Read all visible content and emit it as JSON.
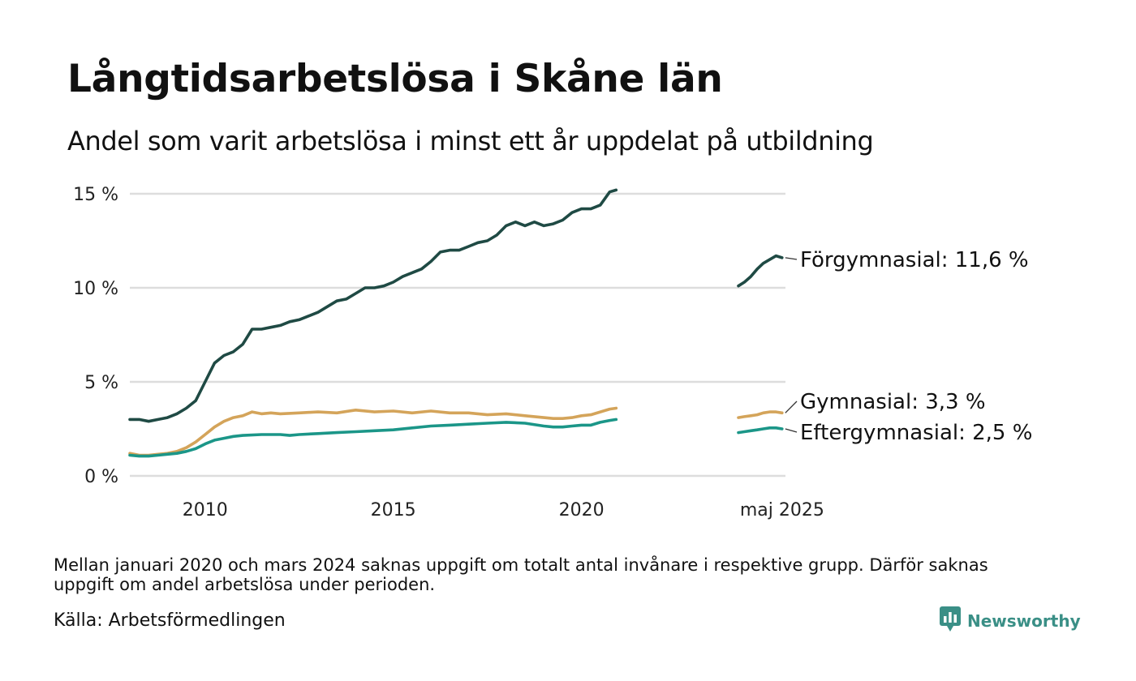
{
  "title": "Långtidsarbetslösa i Skåne län",
  "subtitle": "Andel som varit arbetslösa i minst ett år uppdelat på utbildning",
  "note": "Mellan januari 2020 och mars 2024 saknas uppgift om totalt antal invånare i respektive grupp. Därför saknas uppgift om andel arbetslösa under perioden.",
  "source": "Källa: Arbetsförmedlingen",
  "logo": {
    "name": "Newsworthy",
    "icon": "bar-chart-speech-bubble-icon"
  },
  "colors": {
    "forgymnasial": "#1f4a44",
    "gymnasial": "#d4a45a",
    "eftergymnasial": "#1b9688",
    "grid": "#dddddd",
    "logo": "#3a8f86"
  },
  "chart_data": {
    "type": "line",
    "xlabel": "",
    "ylabel": "",
    "x_range": [
      2008.0,
      2025.42
    ],
    "ylim": [
      0,
      15
    ],
    "y_ticks": [
      0,
      5,
      10,
      15
    ],
    "y_tick_labels": [
      "0 %",
      "5 %",
      "10 %",
      "15 %"
    ],
    "x_ticks": [
      2010,
      2015,
      2020,
      2025.33
    ],
    "x_tick_labels": [
      "2010",
      "2015",
      "2020",
      "maj 2025"
    ],
    "grid": true,
    "legend": "direct labels at line ends (right)",
    "series": [
      {
        "name": "Förgymnasial",
        "end_label": "Förgymnasial: 11,6 %",
        "color": "#1f4a44",
        "segments": [
          [
            [
              2008.0,
              3.0
            ],
            [
              2008.25,
              3.0
            ],
            [
              2008.5,
              2.9
            ],
            [
              2008.75,
              3.0
            ],
            [
              2009.0,
              3.1
            ],
            [
              2009.25,
              3.3
            ],
            [
              2009.5,
              3.6
            ],
            [
              2009.75,
              4.0
            ],
            [
              2010.0,
              5.0
            ],
            [
              2010.25,
              6.0
            ],
            [
              2010.5,
              6.4
            ],
            [
              2010.75,
              6.6
            ],
            [
              2011.0,
              7.0
            ],
            [
              2011.25,
              7.8
            ],
            [
              2011.5,
              7.8
            ],
            [
              2011.75,
              7.9
            ],
            [
              2012.0,
              8.0
            ],
            [
              2012.25,
              8.2
            ],
            [
              2012.5,
              8.3
            ],
            [
              2012.75,
              8.5
            ],
            [
              2013.0,
              8.7
            ],
            [
              2013.25,
              9.0
            ],
            [
              2013.5,
              9.3
            ],
            [
              2013.75,
              9.4
            ],
            [
              2014.0,
              9.7
            ],
            [
              2014.25,
              10.0
            ],
            [
              2014.5,
              10.0
            ],
            [
              2014.75,
              10.1
            ],
            [
              2015.0,
              10.3
            ],
            [
              2015.25,
              10.6
            ],
            [
              2015.5,
              10.8
            ],
            [
              2015.75,
              11.0
            ],
            [
              2016.0,
              11.4
            ],
            [
              2016.25,
              11.9
            ],
            [
              2016.5,
              12.0
            ],
            [
              2016.75,
              12.0
            ],
            [
              2017.0,
              12.2
            ],
            [
              2017.25,
              12.4
            ],
            [
              2017.5,
              12.5
            ],
            [
              2017.75,
              12.8
            ],
            [
              2018.0,
              13.3
            ],
            [
              2018.25,
              13.5
            ],
            [
              2018.5,
              13.3
            ],
            [
              2018.75,
              13.5
            ],
            [
              2019.0,
              13.3
            ],
            [
              2019.25,
              13.4
            ],
            [
              2019.5,
              13.6
            ],
            [
              2019.75,
              14.0
            ],
            [
              2020.0,
              14.2
            ],
            [
              2020.25,
              14.2
            ],
            [
              2020.5,
              14.4
            ],
            [
              2020.75,
              15.1
            ],
            [
              2020.92,
              15.2
            ]
          ],
          [
            [
              2024.17,
              10.1
            ],
            [
              2024.33,
              10.3
            ],
            [
              2024.5,
              10.6
            ],
            [
              2024.67,
              11.0
            ],
            [
              2024.83,
              11.3
            ],
            [
              2025.0,
              11.5
            ],
            [
              2025.17,
              11.7
            ],
            [
              2025.33,
              11.6
            ]
          ]
        ]
      },
      {
        "name": "Gymnasial",
        "end_label": "Gymnasial:  3,3 %",
        "color": "#d4a45a",
        "segments": [
          [
            [
              2008.0,
              1.2
            ],
            [
              2008.25,
              1.1
            ],
            [
              2008.5,
              1.1
            ],
            [
              2008.75,
              1.15
            ],
            [
              2009.0,
              1.2
            ],
            [
              2009.25,
              1.3
            ],
            [
              2009.5,
              1.5
            ],
            [
              2009.75,
              1.8
            ],
            [
              2010.0,
              2.2
            ],
            [
              2010.25,
              2.6
            ],
            [
              2010.5,
              2.9
            ],
            [
              2010.75,
              3.1
            ],
            [
              2011.0,
              3.2
            ],
            [
              2011.25,
              3.4
            ],
            [
              2011.5,
              3.3
            ],
            [
              2011.75,
              3.35
            ],
            [
              2012.0,
              3.3
            ],
            [
              2012.5,
              3.35
            ],
            [
              2013.0,
              3.4
            ],
            [
              2013.5,
              3.35
            ],
            [
              2014.0,
              3.5
            ],
            [
              2014.5,
              3.4
            ],
            [
              2015.0,
              3.45
            ],
            [
              2015.5,
              3.35
            ],
            [
              2016.0,
              3.45
            ],
            [
              2016.5,
              3.35
            ],
            [
              2017.0,
              3.35
            ],
            [
              2017.5,
              3.25
            ],
            [
              2018.0,
              3.3
            ],
            [
              2018.5,
              3.2
            ],
            [
              2019.0,
              3.1
            ],
            [
              2019.25,
              3.05
            ],
            [
              2019.5,
              3.05
            ],
            [
              2019.75,
              3.1
            ],
            [
              2020.0,
              3.2
            ],
            [
              2020.25,
              3.25
            ],
            [
              2020.5,
              3.4
            ],
            [
              2020.75,
              3.55
            ],
            [
              2020.92,
              3.6
            ]
          ],
          [
            [
              2024.17,
              3.1
            ],
            [
              2024.33,
              3.15
            ],
            [
              2024.5,
              3.2
            ],
            [
              2024.67,
              3.25
            ],
            [
              2024.83,
              3.35
            ],
            [
              2025.0,
              3.4
            ],
            [
              2025.17,
              3.4
            ],
            [
              2025.33,
              3.35
            ]
          ]
        ]
      },
      {
        "name": "Eftergymnasial",
        "end_label": "Eftergymnasial:  2,5 %",
        "color": "#1b9688",
        "segments": [
          [
            [
              2008.0,
              1.1
            ],
            [
              2008.25,
              1.05
            ],
            [
              2008.5,
              1.05
            ],
            [
              2008.75,
              1.1
            ],
            [
              2009.0,
              1.15
            ],
            [
              2009.25,
              1.2
            ],
            [
              2009.5,
              1.3
            ],
            [
              2009.75,
              1.45
            ],
            [
              2010.0,
              1.7
            ],
            [
              2010.25,
              1.9
            ],
            [
              2010.5,
              2.0
            ],
            [
              2010.75,
              2.1
            ],
            [
              2011.0,
              2.15
            ],
            [
              2011.5,
              2.2
            ],
            [
              2012.0,
              2.2
            ],
            [
              2012.25,
              2.15
            ],
            [
              2012.5,
              2.2
            ],
            [
              2013.0,
              2.25
            ],
            [
              2013.5,
              2.3
            ],
            [
              2014.0,
              2.35
            ],
            [
              2014.5,
              2.4
            ],
            [
              2015.0,
              2.45
            ],
            [
              2015.5,
              2.55
            ],
            [
              2016.0,
              2.65
            ],
            [
              2016.5,
              2.7
            ],
            [
              2017.0,
              2.75
            ],
            [
              2017.5,
              2.8
            ],
            [
              2018.0,
              2.85
            ],
            [
              2018.5,
              2.8
            ],
            [
              2019.0,
              2.65
            ],
            [
              2019.25,
              2.6
            ],
            [
              2019.5,
              2.6
            ],
            [
              2019.75,
              2.65
            ],
            [
              2020.0,
              2.7
            ],
            [
              2020.25,
              2.7
            ],
            [
              2020.5,
              2.85
            ],
            [
              2020.75,
              2.95
            ],
            [
              2020.92,
              3.0
            ]
          ],
          [
            [
              2024.17,
              2.3
            ],
            [
              2024.33,
              2.35
            ],
            [
              2024.5,
              2.4
            ],
            [
              2024.67,
              2.45
            ],
            [
              2024.83,
              2.5
            ],
            [
              2025.0,
              2.55
            ],
            [
              2025.17,
              2.55
            ],
            [
              2025.33,
              2.5
            ]
          ]
        ]
      }
    ]
  }
}
